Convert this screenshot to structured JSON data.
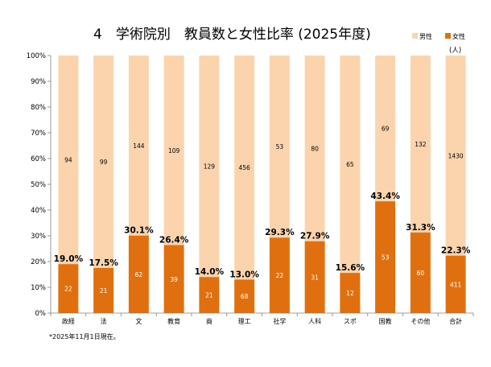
{
  "chart_data": {
    "type": "bar",
    "stacked": "percent",
    "title": "4　学術院別　教員数と女性比率 (2025年度)",
    "unit_label": "(人)",
    "categories": [
      "政経",
      "法",
      "文",
      "教育",
      "商",
      "理工",
      "社学",
      "人科",
      "スポ",
      "国教",
      "その他",
      "合計"
    ],
    "series": [
      {
        "name": "女性",
        "color": "#e0700f",
        "values": [
          22,
          21,
          62,
          39,
          21,
          68,
          22,
          31,
          12,
          53,
          60,
          411
        ]
      },
      {
        "name": "男性",
        "color": "#fbd4ae",
        "values": [
          94,
          99,
          144,
          109,
          129,
          456,
          53,
          80,
          65,
          69,
          132,
          1430
        ]
      }
    ],
    "female_ratio_labels": [
      "19.0%",
      "17.5%",
      "30.1%",
      "26.4%",
      "14.0%",
      "13.0%",
      "29.3%",
      "27.9%",
      "15.6%",
      "43.4%",
      "31.3%",
      "22.3%"
    ],
    "female_ratio": [
      19.0,
      17.5,
      30.1,
      26.4,
      14.0,
      13.0,
      29.3,
      27.9,
      15.6,
      43.4,
      31.3,
      22.3
    ],
    "y_ticks": [
      "0%",
      "10%",
      "20%",
      "30%",
      "40%",
      "50%",
      "60%",
      "70%",
      "80%",
      "90%",
      "100%"
    ],
    "ylim": [
      0,
      100
    ],
    "legend": {
      "position": "top-right",
      "items": [
        "男性",
        "女性"
      ]
    }
  },
  "footnote": "*2025年11月1日現在。"
}
